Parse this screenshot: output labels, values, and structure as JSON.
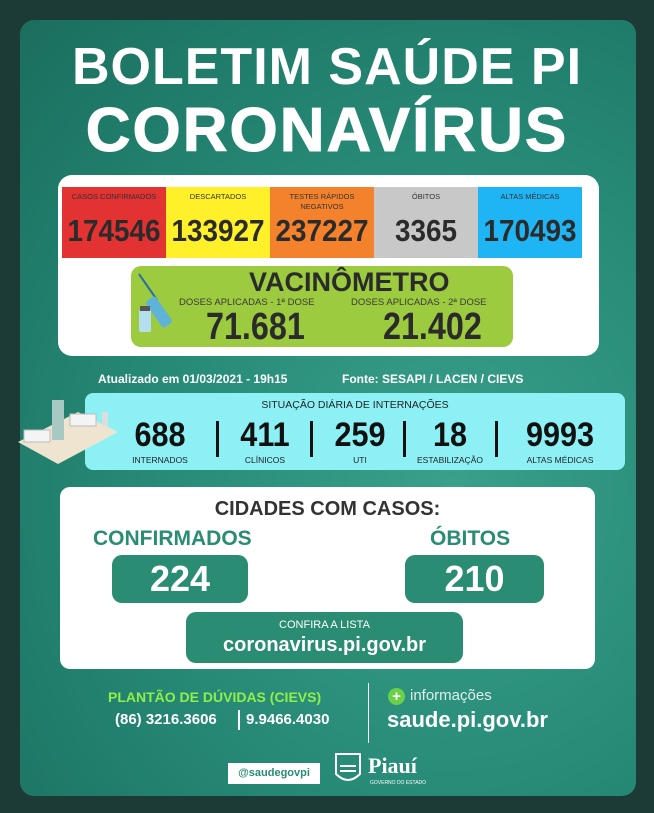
{
  "header": {
    "title": "BOLETIM SAÚDE PI",
    "subtitle": "CORONAVÍRUS"
  },
  "stats": [
    {
      "label": "CASOS CONFIRMADOS",
      "value": "174546",
      "color": "#e23232"
    },
    {
      "label": "DESCARTADOS",
      "value": "133927",
      "color": "#fff02a"
    },
    {
      "label": "TESTES RÁPIDOS NEGATIVOS",
      "value": "237227",
      "color": "#f4822c"
    },
    {
      "label": "ÓBITOS",
      "value": "3365",
      "color": "#c8c8c8"
    },
    {
      "label": "ALTAS MÉDICAS",
      "value": "170493",
      "color": "#1fb4f4"
    }
  ],
  "vacinometro": {
    "title": "VACINÔMETRO",
    "dose1_label": "DOSES APLICADAS - 1ª DOSE",
    "dose1_value": "71.681",
    "dose2_label": "DOSES APLICADAS - 2ª DOSE",
    "dose2_value": "21.402",
    "icon": "syringe-vaccine-icon"
  },
  "updated": "Atualizado em 01/03/2021 - 19h15",
  "source": "Fonte: SESAPI / LACEN / CIEVS",
  "internacoes": {
    "title": "SITUAÇÃO DIÁRIA DE INTERNAÇÕES",
    "items": [
      {
        "value": "688",
        "label": "INTERNADOS"
      },
      {
        "value": "411",
        "label": "CLÍNICOS"
      },
      {
        "value": "259",
        "label": "UTI"
      },
      {
        "value": "18",
        "label": "ESTABILIZAÇÃO"
      },
      {
        "value": "9993",
        "label": "ALTAS MÉDICAS"
      }
    ],
    "icon": "hospital-beds-icon"
  },
  "cidades": {
    "title": "CIDADES COM CASOS:",
    "confirmados_label": "CONFIRMADOS",
    "confirmados_value": "224",
    "obitos_label": "ÓBITOS",
    "obitos_value": "210",
    "lista_label": "CONFIRA A LISTA",
    "lista_url": "coronavirus.pi.gov.br"
  },
  "footer": {
    "plantao": "PLANTÃO DE DÚVIDAS (CIEVS)",
    "phone1": "(86) 3216.3606",
    "phone2": "9.9466.4030",
    "info_label": "informações",
    "info_url": "saude.pi.gov.br",
    "social": "@saudegovpi",
    "logo_text": "Piauí",
    "logo_sub": "GOVERNO DO ESTADO"
  }
}
